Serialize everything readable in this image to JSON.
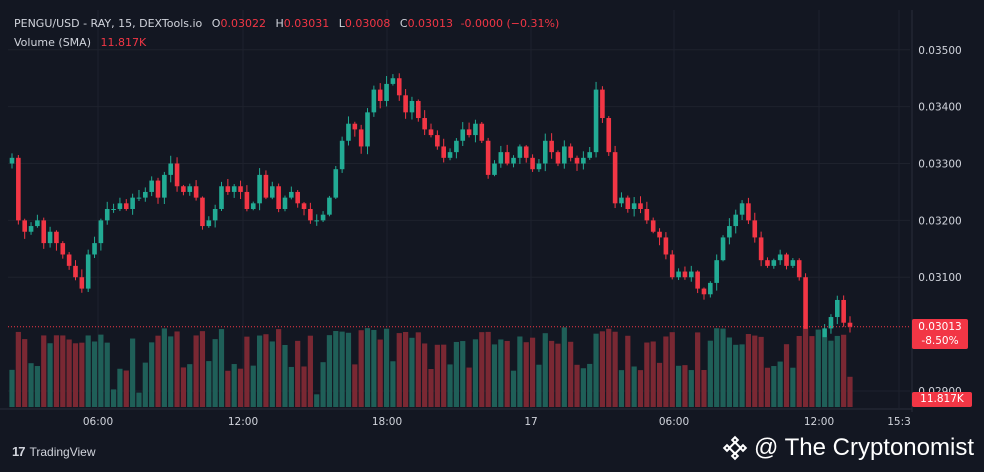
{
  "legend": {
    "symbol": "PENGU/USD - RAY, 15, DEXTools.io",
    "o_label": "O",
    "o_value": "0.03022",
    "h_label": "H",
    "h_value": "0.03031",
    "l_label": "L",
    "l_value": "0.03008",
    "c_label": "C",
    "c_value": "0.03013",
    "change": "-0.0000 (−0.31%)",
    "volume_label": "Volume (SMA)",
    "volume_value": "11.817K"
  },
  "price_tag": {
    "price": "0.03013",
    "change": "-8.50%"
  },
  "volume_tag": "11.817K",
  "footer": {
    "platform": "TradingView",
    "watermark": "@ The Cryptonomist"
  },
  "colors": {
    "up": "#22ab94",
    "down": "#f23645",
    "up_vol": "#1f5f58",
    "down_vol": "#7a2833",
    "bg": "#131722",
    "grid": "#1e222d"
  },
  "chart_data": {
    "type": "candlestick",
    "symbol": "PENGU/USD",
    "interval": "15",
    "ylim": [
      0.0287,
      0.0357
    ],
    "yticks": [
      "0.03500",
      "0.03400",
      "0.03300",
      "0.03200",
      "0.03100",
      "0.02900"
    ],
    "xticks": [
      "06:00",
      "12:00",
      "18:00",
      "17",
      "06:00",
      "12:00",
      "15:3"
    ],
    "close_series": [
      0.0331,
      0.032,
      0.0318,
      0.0319,
      0.032,
      0.0316,
      0.0318,
      0.0316,
      0.0314,
      0.0312,
      0.031,
      0.0308,
      0.0314,
      0.0316,
      0.032,
      0.0322,
      0.0322,
      0.0323,
      0.0322,
      0.0324,
      0.0324,
      0.0325,
      0.0327,
      0.0324,
      0.0328,
      0.033,
      0.0326,
      0.0325,
      0.0326,
      0.0324,
      0.0319,
      0.032,
      0.0322,
      0.0326,
      0.0325,
      0.0326,
      0.0325,
      0.0322,
      0.0323,
      0.0328,
      0.0324,
      0.0326,
      0.0322,
      0.0324,
      0.0325,
      0.0323,
      0.0322,
      0.032,
      0.032,
      0.0321,
      0.0324,
      0.0329,
      0.0334,
      0.0337,
      0.0336,
      0.0333,
      0.0339,
      0.0343,
      0.0341,
      0.0344,
      0.0345,
      0.0342,
      0.0339,
      0.0341,
      0.0338,
      0.0336,
      0.0335,
      0.0333,
      0.0331,
      0.0332,
      0.0334,
      0.0336,
      0.0335,
      0.0337,
      0.0334,
      0.0328,
      0.033,
      0.0332,
      0.033,
      0.0331,
      0.0333,
      0.0331,
      0.0329,
      0.033,
      0.0334,
      0.0332,
      0.033,
      0.0333,
      0.0331,
      0.033,
      0.0331,
      0.0332,
      0.0343,
      0.0338,
      0.0332,
      0.0323,
      0.0324,
      0.0322,
      0.0323,
      0.0322,
      0.032,
      0.0318,
      0.0317,
      0.0314,
      0.031,
      0.0311,
      0.031,
      0.0311,
      0.0308,
      0.0307,
      0.0309,
      0.0313,
      0.0317,
      0.0319,
      0.0321,
      0.0323,
      0.032,
      0.0317,
      0.0313,
      0.0312,
      0.0313,
      0.0314,
      0.0312,
      0.0313,
      0.031,
      0.0296,
      0.0294,
      0.0299,
      0.0301,
      0.0303,
      0.0306,
      0.0302,
      0.03013
    ],
    "volume_sma": "11.817K",
    "last_price": 0.03013,
    "last_change_pct": -8.5
  }
}
